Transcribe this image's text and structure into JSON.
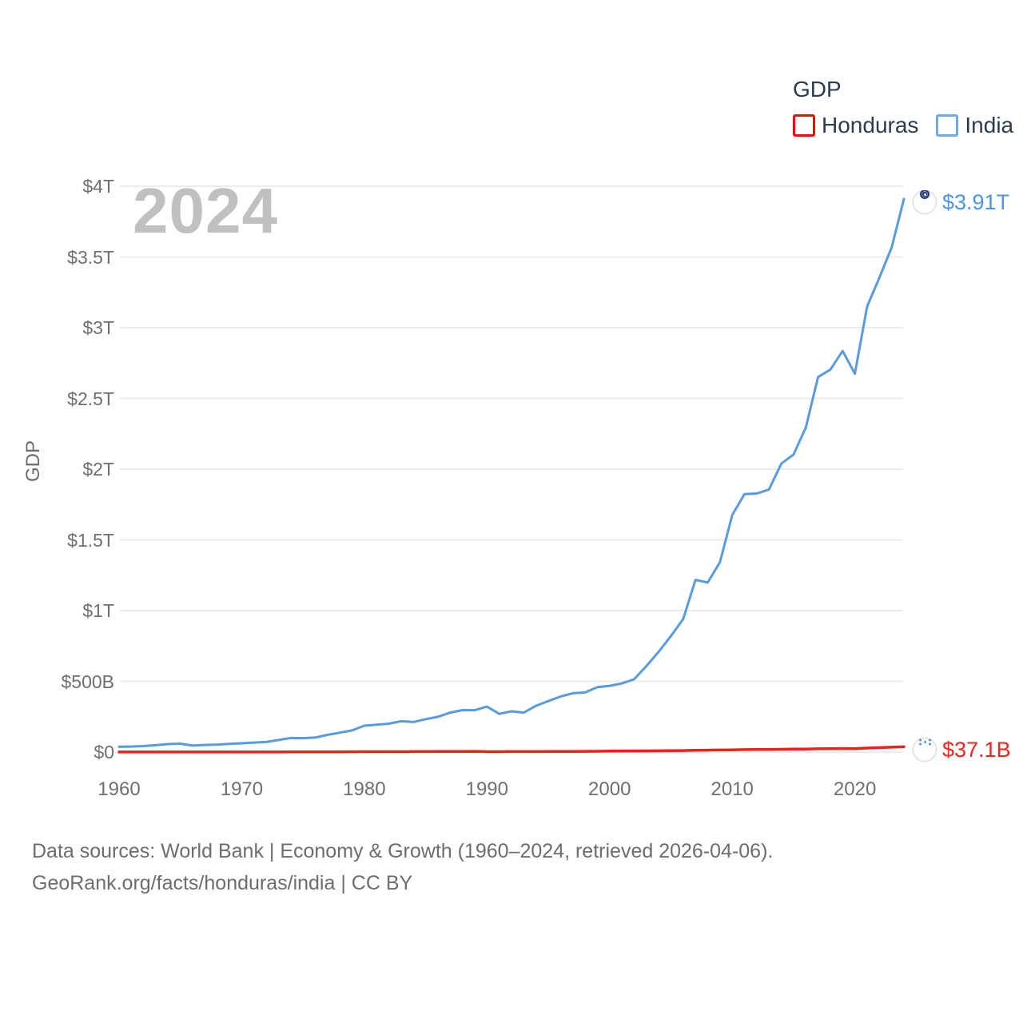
{
  "legend": {
    "title": "GDP",
    "items": [
      {
        "label": "Honduras",
        "swatch_color": "#f30b0b"
      },
      {
        "label": "India",
        "swatch_color": "#70aae4"
      }
    ]
  },
  "watermark": "2024",
  "y_axis_label": "GDP",
  "end_labels": {
    "india": {
      "value": "$3.91T",
      "color": "#4a97e8",
      "flag": "india-flag"
    },
    "honduras": {
      "value": "$37.1B",
      "color": "#f2251c",
      "flag": "honduras-flag"
    }
  },
  "footer": {
    "line1": "Data sources: World Bank | Economy & Growth (1960–2024, retrieved 2026-04-06).",
    "line2": "GeoRank.org/facts/honduras/india | CC BY"
  },
  "chart_data": {
    "type": "line",
    "title": "GDP",
    "ylabel": "GDP",
    "unit": "billion USD (current)",
    "xlim": [
      1960,
      2024
    ],
    "ylim": [
      0,
      4000
    ],
    "grid": "horizontal",
    "legend_position": "top-right",
    "x": [
      1960,
      1961,
      1962,
      1963,
      1964,
      1965,
      1966,
      1967,
      1968,
      1969,
      1970,
      1971,
      1972,
      1973,
      1974,
      1975,
      1976,
      1977,
      1978,
      1979,
      1980,
      1981,
      1982,
      1983,
      1984,
      1985,
      1986,
      1987,
      1988,
      1989,
      1990,
      1991,
      1992,
      1993,
      1994,
      1995,
      1996,
      1997,
      1998,
      1999,
      2000,
      2001,
      2002,
      2003,
      2004,
      2005,
      2006,
      2007,
      2008,
      2009,
      2010,
      2011,
      2012,
      2013,
      2014,
      2015,
      2016,
      2017,
      2018,
      2019,
      2020,
      2021,
      2022,
      2023,
      2024
    ],
    "series": [
      {
        "name": "Honduras",
        "color": "#ee2019",
        "end_value_label": "$37.1B",
        "values": [
          0.34,
          0.36,
          0.39,
          0.41,
          0.44,
          0.46,
          0.49,
          0.52,
          0.56,
          0.58,
          0.65,
          0.68,
          0.72,
          0.8,
          0.91,
          1.11,
          1.28,
          1.58,
          1.82,
          2.18,
          2.57,
          2.8,
          2.9,
          3.07,
          3.28,
          3.64,
          3.81,
          4.07,
          4.45,
          4.89,
          3.05,
          3.07,
          3.42,
          3.5,
          3.43,
          4.06,
          4.13,
          4.72,
          5.2,
          5.37,
          7.19,
          7.65,
          7.91,
          8.23,
          8.87,
          9.75,
          10.92,
          12.36,
          13.79,
          14.59,
          15.84,
          17.73,
          18.53,
          18.5,
          19.76,
          20.98,
          21.72,
          23.14,
          24.07,
          25.1,
          23.83,
          28.49,
          31.72,
          34.4,
          37.1
        ]
      },
      {
        "name": "India",
        "color": "#5a9be0",
        "end_value_label": "$3.91T",
        "values": [
          37.03,
          39.23,
          42.16,
          48.42,
          56.48,
          59.55,
          45.87,
          50.13,
          53.09,
          58.45,
          62.42,
          67.35,
          71.46,
          85.52,
          99.53,
          98.47,
          102.72,
          121.49,
          137.3,
          152.99,
          186.33,
          193.49,
          200.72,
          218.26,
          212.16,
          232.51,
          248.99,
          279.03,
          296.59,
          296.04,
          320.98,
          270.11,
          288.21,
          279.3,
          327.28,
          360.28,
          392.9,
          415.87,
          421.35,
          458.82,
          468.39,
          485.44,
          514.94,
          607.7,
          709.15,
          820.38,
          940.26,
          1216.74,
          1198.9,
          1341.89,
          1675.62,
          1823.05,
          1827.64,
          1856.72,
          2039.13,
          2103.59,
          2294.8,
          2651.47,
          2702.93,
          2835.61,
          2674.85,
          3150.31,
          3353.47,
          3567.55,
          3910.0
        ]
      }
    ],
    "y_ticks": [
      {
        "label": "$4T",
        "value": 4000
      },
      {
        "label": "$3.5T",
        "value": 3500
      },
      {
        "label": "$3T",
        "value": 3000
      },
      {
        "label": "$2.5T",
        "value": 2500
      },
      {
        "label": "$2T",
        "value": 2000
      },
      {
        "label": "$1.5T",
        "value": 1500
      },
      {
        "label": "$1T",
        "value": 1000
      },
      {
        "label": "$500B",
        "value": 500
      },
      {
        "label": "$0",
        "value": 0
      }
    ],
    "x_ticks": [
      {
        "label": "1960",
        "value": 1960
      },
      {
        "label": "1970",
        "value": 1970
      },
      {
        "label": "1980",
        "value": 1980
      },
      {
        "label": "1990",
        "value": 1990
      },
      {
        "label": "2000",
        "value": 2000
      },
      {
        "label": "2010",
        "value": 2010
      },
      {
        "label": "2020",
        "value": 2020
      }
    ]
  }
}
